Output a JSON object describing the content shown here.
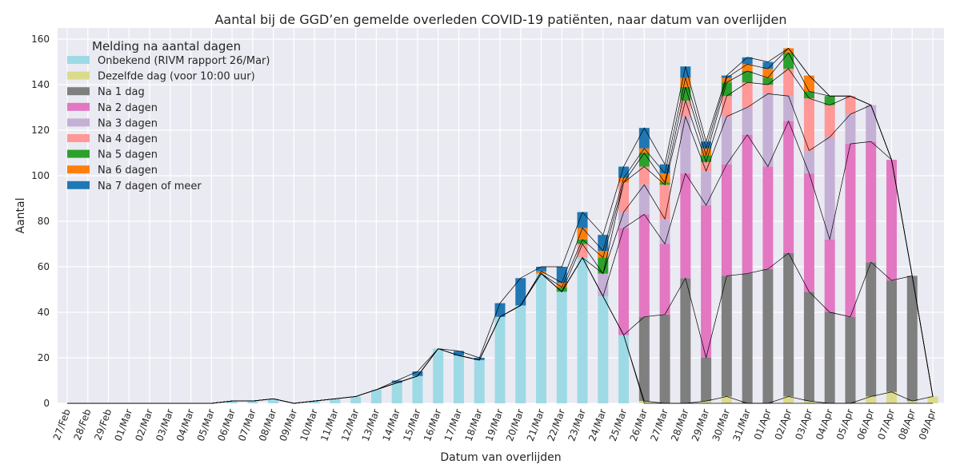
{
  "chart_data": {
    "type": "bar",
    "stacked": true,
    "title": "Aantal bij de GGD’en gemelde overleden COVID-19 patiënten, naar datum van overlijden",
    "xlabel": "Datum van overlijden",
    "ylabel": "Aantal",
    "ylim": [
      0,
      165
    ],
    "yticks": [
      0,
      20,
      40,
      60,
      80,
      100,
      120,
      140,
      160
    ],
    "grid": true,
    "legend_title": "Melding na aantal dagen",
    "legend_placement": "top-left",
    "categories": [
      "27/Feb",
      "28/Feb",
      "29/Feb",
      "01/Mar",
      "02/Mar",
      "03/Mar",
      "04/Mar",
      "05/Mar",
      "06/Mar",
      "07/Mar",
      "08/Mar",
      "09/Mar",
      "10/Mar",
      "11/Mar",
      "12/Mar",
      "13/Mar",
      "14/Mar",
      "15/Mar",
      "16/Mar",
      "17/Mar",
      "18/Mar",
      "19/Mar",
      "20/Mar",
      "21/Mar",
      "22/Mar",
      "23/Mar",
      "24/Mar",
      "25/Mar",
      "26/Mar",
      "27/Mar",
      "28/Mar",
      "29/Mar",
      "30/Mar",
      "31/Mar",
      "01/Apr",
      "02/Apr",
      "03/Apr",
      "04/Apr",
      "05/Apr",
      "06/Apr",
      "07/Apr",
      "08/Apr",
      "09/Apr"
    ],
    "series": [
      {
        "name": "Onbekend (RIVM rapport 26/Mar)",
        "color": "#9edae5",
        "values": [
          0,
          0,
          0,
          0,
          0,
          0,
          0,
          0,
          1,
          1,
          2,
          0,
          1,
          2,
          3,
          6,
          9,
          12,
          24,
          21,
          19,
          38,
          43,
          57,
          49,
          64,
          47,
          30,
          0,
          0,
          0,
          0,
          0,
          0,
          0,
          0,
          0,
          0,
          0,
          0,
          0,
          0,
          0
        ]
      },
      {
        "name": "Dezelfde dag (voor 10:00 uur)",
        "color": "#dbdb8d",
        "values": [
          0,
          0,
          0,
          0,
          0,
          0,
          0,
          0,
          0,
          0,
          0,
          0,
          0,
          0,
          0,
          0,
          0,
          0,
          0,
          0,
          0,
          0,
          0,
          0,
          0,
          0,
          0,
          0,
          1,
          0,
          0,
          1,
          3,
          0,
          0,
          3,
          1,
          0,
          0,
          3,
          5,
          1,
          3
        ]
      },
      {
        "name": "Na 1 dag",
        "color": "#7f7f7f",
        "values": [
          0,
          0,
          0,
          0,
          0,
          0,
          0,
          0,
          0,
          0,
          0,
          0,
          0,
          0,
          0,
          0,
          0,
          0,
          0,
          0,
          0,
          0,
          0,
          0,
          0,
          0,
          0,
          0,
          37,
          39,
          55,
          19,
          53,
          57,
          59,
          63,
          48,
          40,
          38,
          59,
          49,
          55,
          0
        ]
      },
      {
        "name": "Na 2 dagen",
        "color": "#e377c2",
        "values": [
          0,
          0,
          0,
          0,
          0,
          0,
          0,
          0,
          0,
          0,
          0,
          0,
          0,
          0,
          0,
          0,
          0,
          0,
          0,
          0,
          0,
          0,
          0,
          0,
          0,
          0,
          0,
          47,
          45,
          31,
          46,
          67,
          49,
          61,
          45,
          58,
          52,
          32,
          76,
          53,
          53,
          0,
          0
        ]
      },
      {
        "name": "Na 3 dagen",
        "color": "#c5b0d5",
        "values": [
          0,
          0,
          0,
          0,
          0,
          0,
          0,
          0,
          0,
          0,
          0,
          0,
          0,
          0,
          0,
          0,
          0,
          0,
          0,
          0,
          0,
          0,
          0,
          0,
          0,
          0,
          10,
          7,
          13,
          11,
          25,
          15,
          21,
          12,
          32,
          11,
          10,
          45,
          13,
          16,
          0,
          0,
          0
        ]
      },
      {
        "name": "Na 4 dagen",
        "color": "#ff9896",
        "values": [
          0,
          0,
          0,
          0,
          0,
          0,
          0,
          0,
          0,
          0,
          0,
          0,
          0,
          0,
          0,
          0,
          0,
          0,
          0,
          0,
          0,
          0,
          0,
          0,
          0,
          6,
          0,
          13,
          8,
          15,
          7,
          4,
          9,
          11,
          4,
          12,
          23,
          14,
          8,
          0,
          0,
          0,
          0
        ]
      },
      {
        "name": "Na 5 dagen",
        "color": "#2ca02c",
        "values": [
          0,
          0,
          0,
          0,
          0,
          0,
          0,
          0,
          0,
          0,
          0,
          0,
          0,
          0,
          0,
          0,
          0,
          0,
          0,
          0,
          0,
          0,
          0,
          0,
          2,
          2,
          7,
          0,
          6,
          1,
          6,
          3,
          6,
          5,
          3,
          7,
          3,
          4,
          0,
          0,
          0,
          0,
          0
        ]
      },
      {
        "name": "Na 6 dagen",
        "color": "#ff7f0e",
        "values": [
          0,
          0,
          0,
          0,
          0,
          0,
          0,
          0,
          0,
          0,
          0,
          0,
          0,
          0,
          0,
          0,
          0,
          0,
          0,
          0,
          0,
          0,
          0,
          1,
          2,
          5,
          3,
          2,
          2,
          4,
          4,
          3,
          2,
          3,
          4,
          2,
          7,
          0,
          0,
          0,
          0,
          0,
          0
        ]
      },
      {
        "name": "Na 7 dagen of meer",
        "color": "#1f77b4",
        "values": [
          0,
          0,
          0,
          0,
          0,
          0,
          0,
          0,
          0,
          0,
          0,
          0,
          0,
          0,
          0,
          0,
          1,
          2,
          0,
          2,
          1,
          6,
          12,
          2,
          7,
          7,
          7,
          5,
          9,
          4,
          5,
          3,
          1,
          3,
          3,
          0,
          0,
          0,
          0,
          0,
          0,
          0,
          0
        ]
      }
    ]
  }
}
